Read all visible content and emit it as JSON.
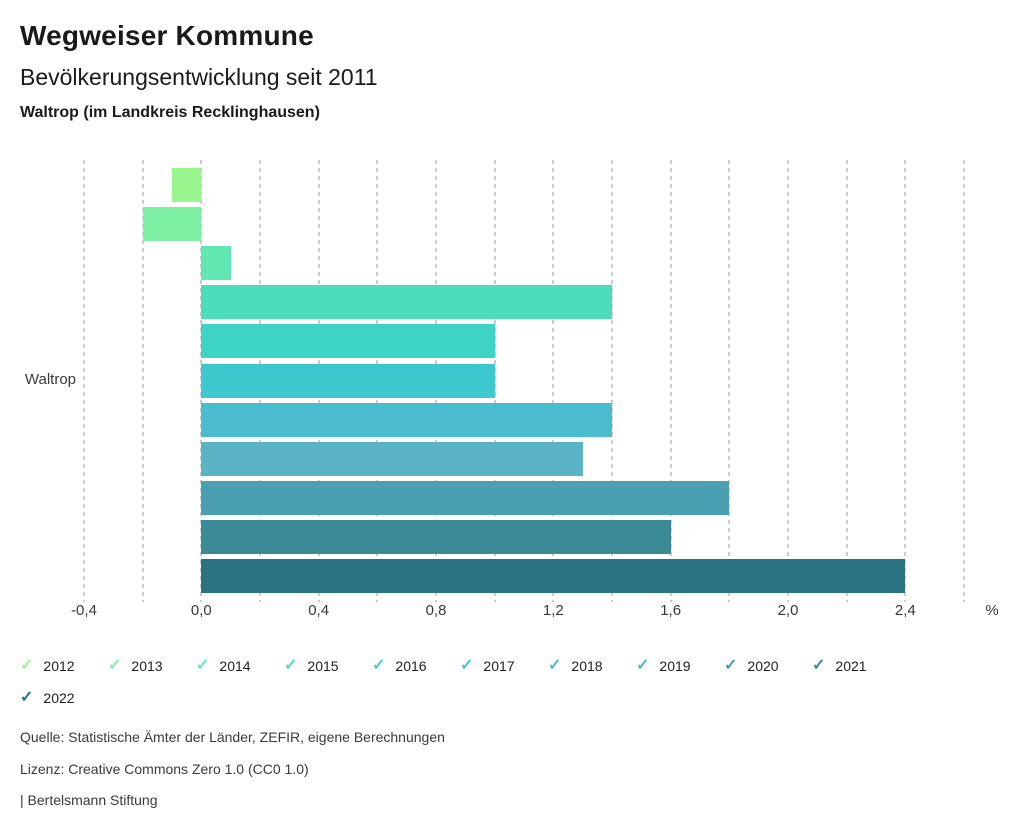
{
  "header": {
    "title": "Wegweiser Kommune",
    "subtitle": "Bevölkerungsentwicklung seit 2011",
    "location": "Waltrop (im Landkreis Recklinghausen)"
  },
  "chart_data": {
    "type": "bar",
    "orientation": "horizontal",
    "row_label": "Waltrop",
    "unit_label": "%",
    "xlim": [
      -0.4,
      2.6
    ],
    "gridline_step": 0.2,
    "grid": true,
    "legend_position": "bottom",
    "check_icon": "✓",
    "x_ticks": [
      -0.4,
      0.0,
      0.4,
      0.8,
      1.2,
      1.6,
      2.0,
      2.4
    ],
    "x_tick_labels": [
      "-0,4",
      "0,0",
      "0,4",
      "0,8",
      "1,2",
      "1,6",
      "2,0",
      "2,4"
    ],
    "series": [
      {
        "name": "2012",
        "value": -0.1,
        "color": "#99f68e"
      },
      {
        "name": "2013",
        "value": -0.2,
        "color": "#7defa3"
      },
      {
        "name": "2014",
        "value": 0.1,
        "color": "#61e7b2"
      },
      {
        "name": "2015",
        "value": 1.4,
        "color": "#4bddbc"
      },
      {
        "name": "2016",
        "value": 1.0,
        "color": "#3dd3c5"
      },
      {
        "name": "2017",
        "value": 1.0,
        "color": "#3dc8ce"
      },
      {
        "name": "2018",
        "value": 1.4,
        "color": "#4bbccd"
      },
      {
        "name": "2019",
        "value": 1.3,
        "color": "#5bb3c6"
      },
      {
        "name": "2020",
        "value": 1.8,
        "color": "#4aa0b1"
      },
      {
        "name": "2021",
        "value": 1.6,
        "color": "#398997"
      },
      {
        "name": "2022",
        "value": 2.4,
        "color": "#2a7382"
      }
    ]
  },
  "footer": {
    "source": "Quelle: Statistische Ämter der Länder, ZEFIR, eigene Berechnungen",
    "license": "Lizenz: Creative Commons Zero 1.0 (CC0 1.0)",
    "attribution": "| Bertelsmann Stiftung"
  }
}
